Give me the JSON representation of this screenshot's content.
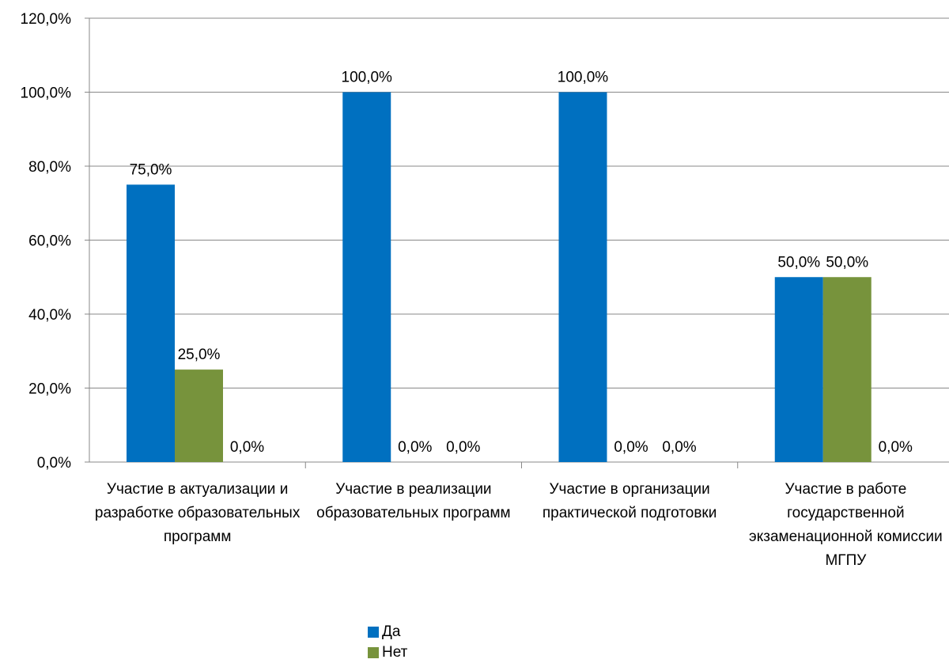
{
  "chart_data": {
    "type": "bar",
    "categories": [
      "Участие в актуализации и разработке образовательных программ",
      "Участие в реализации образовательных программ",
      "Участие в организации практической подготовки",
      "Участие в работе государственной экзаменационной комиссии МГПУ"
    ],
    "series": [
      {
        "name": "Да",
        "color": "#0070C0",
        "values": [
          75.0,
          100.0,
          100.0,
          50.0
        ],
        "labels": [
          "75,0%",
          "100,0%",
          "100,0%",
          "50,0%"
        ]
      },
      {
        "name": "Нет",
        "color": "#77933C",
        "values": [
          25.0,
          0.0,
          0.0,
          50.0
        ],
        "labels": [
          "25,0%",
          "0,0%",
          "0,0%",
          "50,0%"
        ]
      },
      {
        "name": "",
        "color": "#777777",
        "values": [
          0.0,
          0.0,
          0.0,
          0.0
        ],
        "labels": [
          "0,0%",
          "0,0%",
          "0,0%",
          "0,0%"
        ]
      }
    ],
    "ylim": [
      0,
      120
    ],
    "yticks": [
      0,
      20,
      40,
      60,
      80,
      100,
      120
    ],
    "ytick_labels": [
      "0,0%",
      "20,0%",
      "40,0%",
      "60,0%",
      "80,0%",
      "100,0%",
      "120,0%"
    ],
    "grid": true,
    "legend": "bottom",
    "title": "",
    "xlabel": "",
    "ylabel": ""
  }
}
